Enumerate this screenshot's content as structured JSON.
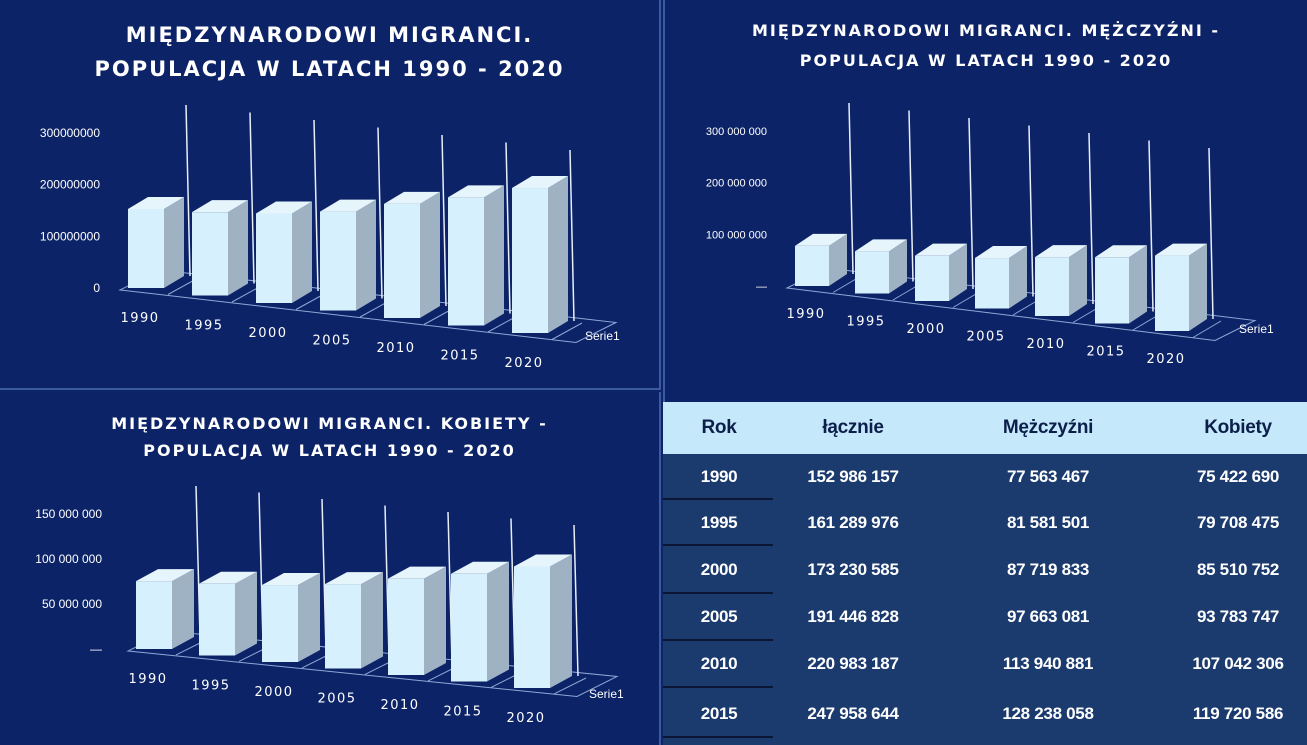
{
  "chart_data": [
    {
      "type": "bar",
      "title": [
        "MIĘDZYNARODOWI MIGRANCI.",
        "POPULACJA W LATACH 1990 - 2020"
      ],
      "categories": [
        "1990",
        "1995",
        "2000",
        "2005",
        "2010",
        "2015",
        "2020"
      ],
      "series": [
        {
          "name": "Serie1",
          "values": [
            152986157,
            161289976,
            173230585,
            191446828,
            220983187,
            247958644,
            280598105
          ]
        }
      ],
      "ylim": [
        0,
        300000000
      ],
      "yticks": [
        {
          "value": 0,
          "label": "0"
        },
        {
          "value": 100000000,
          "label": "100000000"
        },
        {
          "value": 200000000,
          "label": "200000000"
        },
        {
          "value": 300000000,
          "label": "300000000"
        }
      ],
      "legend": "none",
      "grid": false,
      "color": "#d6f0fd"
    },
    {
      "type": "bar",
      "title": [
        "MIĘDZYNARODOWI MIGRANCI. MĘŻCZYŹNI -",
        "POPULACJA W LATACH 1990 - 2020"
      ],
      "categories": [
        "1990",
        "1995",
        "2000",
        "2005",
        "2010",
        "2015",
        "2020"
      ],
      "series": [
        {
          "name": "Serie1",
          "values": [
            77563467,
            81581501,
            87719833,
            97663081,
            113940881,
            128238058,
            146000000
          ]
        }
      ],
      "ylim": [
        0,
        300000000
      ],
      "yticks": [
        {
          "value": 0,
          "label": "—"
        },
        {
          "value": 100000000,
          "label": "100 000 000"
        },
        {
          "value": 200000000,
          "label": "200 000 000"
        },
        {
          "value": 300000000,
          "label": "300 000 000"
        }
      ],
      "legend": "none",
      "grid": false,
      "color": "#d6f0fd"
    },
    {
      "type": "bar",
      "title": [
        "MIĘDZYNARODOWI MIGRANCI. KOBIETY -",
        "POPULACJA W LATACH 1990 - 2020"
      ],
      "categories": [
        "1990",
        "1995",
        "2000",
        "2005",
        "2010",
        "2015",
        "2020"
      ],
      "series": [
        {
          "name": "Serie1",
          "values": [
            75422690,
            79708475,
            85510752,
            93783747,
            107042306,
            119720586,
            135000000
          ]
        }
      ],
      "ylim": [
        0,
        150000000
      ],
      "yticks": [
        {
          "value": 0,
          "label": "—"
        },
        {
          "value": 50000000,
          "label": "50 000 000"
        },
        {
          "value": 100000000,
          "label": "100 000 000"
        },
        {
          "value": 150000000,
          "label": "150 000 000"
        }
      ],
      "legend": "none",
      "grid": false,
      "color": "#d6f0fd"
    }
  ],
  "table": {
    "headers": [
      "Rok",
      "łącznie",
      "Mężczyźni",
      "Kobiety"
    ],
    "rows": [
      [
        "1990",
        "152 986 157",
        "77 563 467",
        "75 422 690"
      ],
      [
        "1995",
        "161 289 976",
        "81 581 501",
        "79 708 475"
      ],
      [
        "2000",
        "173 230 585",
        "87 719 833",
        "85 510 752"
      ],
      [
        "2005",
        "191 446 828",
        "97 663 081",
        "93 783 747"
      ],
      [
        "2010",
        "220 983 187",
        "113 940 881",
        "107 042 306"
      ],
      [
        "2015",
        "247 958 644",
        "128 238 058",
        "119 720 586"
      ]
    ]
  },
  "colors": {
    "background": "#0c2368",
    "bar_front": "#d6f0fd",
    "bar_side": "#9fb2c4",
    "bar_top": "#e6f4fb",
    "table_header": "#c6e8fb",
    "table_body": "#1b3a6e"
  }
}
